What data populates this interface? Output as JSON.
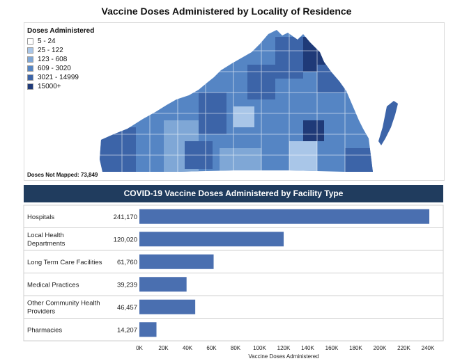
{
  "map": {
    "title": "Vaccine Doses Administered by Locality of Residence",
    "legend_title": "Doses Administered",
    "legend": [
      {
        "label": "5 - 24",
        "color": "#ffffff"
      },
      {
        "label": "25 - 122",
        "color": "#a9c6e8"
      },
      {
        "label": "123 - 608",
        "color": "#7fa7d6"
      },
      {
        "label": "609 - 3020",
        "color": "#5585c4"
      },
      {
        "label": "3021 - 14999",
        "color": "#3c64a8"
      },
      {
        "label": "15000+",
        "color": "#1f3a78"
      }
    ],
    "not_mapped_label": "Doses Not Mapped:",
    "not_mapped_value": "73,849"
  },
  "facility": {
    "title": "COVID-19 Vaccine Doses Administered by Facility Type"
  },
  "chart_data": {
    "type": "bar",
    "orientation": "horizontal",
    "title": "COVID-19 Vaccine Doses Administered by Facility Type",
    "categories": [
      [
        "Hospitals"
      ],
      [
        "Local Health",
        "Departments"
      ],
      [
        "Long Term Care Facilities"
      ],
      [
        "Medical Practices"
      ],
      [
        "Other Community Health",
        "Providers"
      ],
      [
        "Pharmacies"
      ]
    ],
    "values": [
      241170,
      120020,
      61760,
      39239,
      46457,
      14207
    ],
    "value_labels": [
      "241,170",
      "120,020",
      "61,760",
      "39,239",
      "46,457",
      "14,207"
    ],
    "xlabel": "Vaccine Doses Administered",
    "xlim": [
      0,
      240000
    ],
    "ticks": [
      {
        "value": 0,
        "label": "0K"
      },
      {
        "value": 20000,
        "label": "20K"
      },
      {
        "value": 40000,
        "label": "40K"
      },
      {
        "value": 60000,
        "label": "60K"
      },
      {
        "value": 80000,
        "label": "80K"
      },
      {
        "value": 100000,
        "label": "100K"
      },
      {
        "value": 120000,
        "label": "120K"
      },
      {
        "value": 140000,
        "label": "140K"
      },
      {
        "value": 160000,
        "label": "160K"
      },
      {
        "value": 180000,
        "label": "180K"
      },
      {
        "value": 200000,
        "label": "200K"
      },
      {
        "value": 220000,
        "label": "220K"
      },
      {
        "value": 240000,
        "label": "240K"
      }
    ],
    "bar_color": "#4a6fb0"
  }
}
